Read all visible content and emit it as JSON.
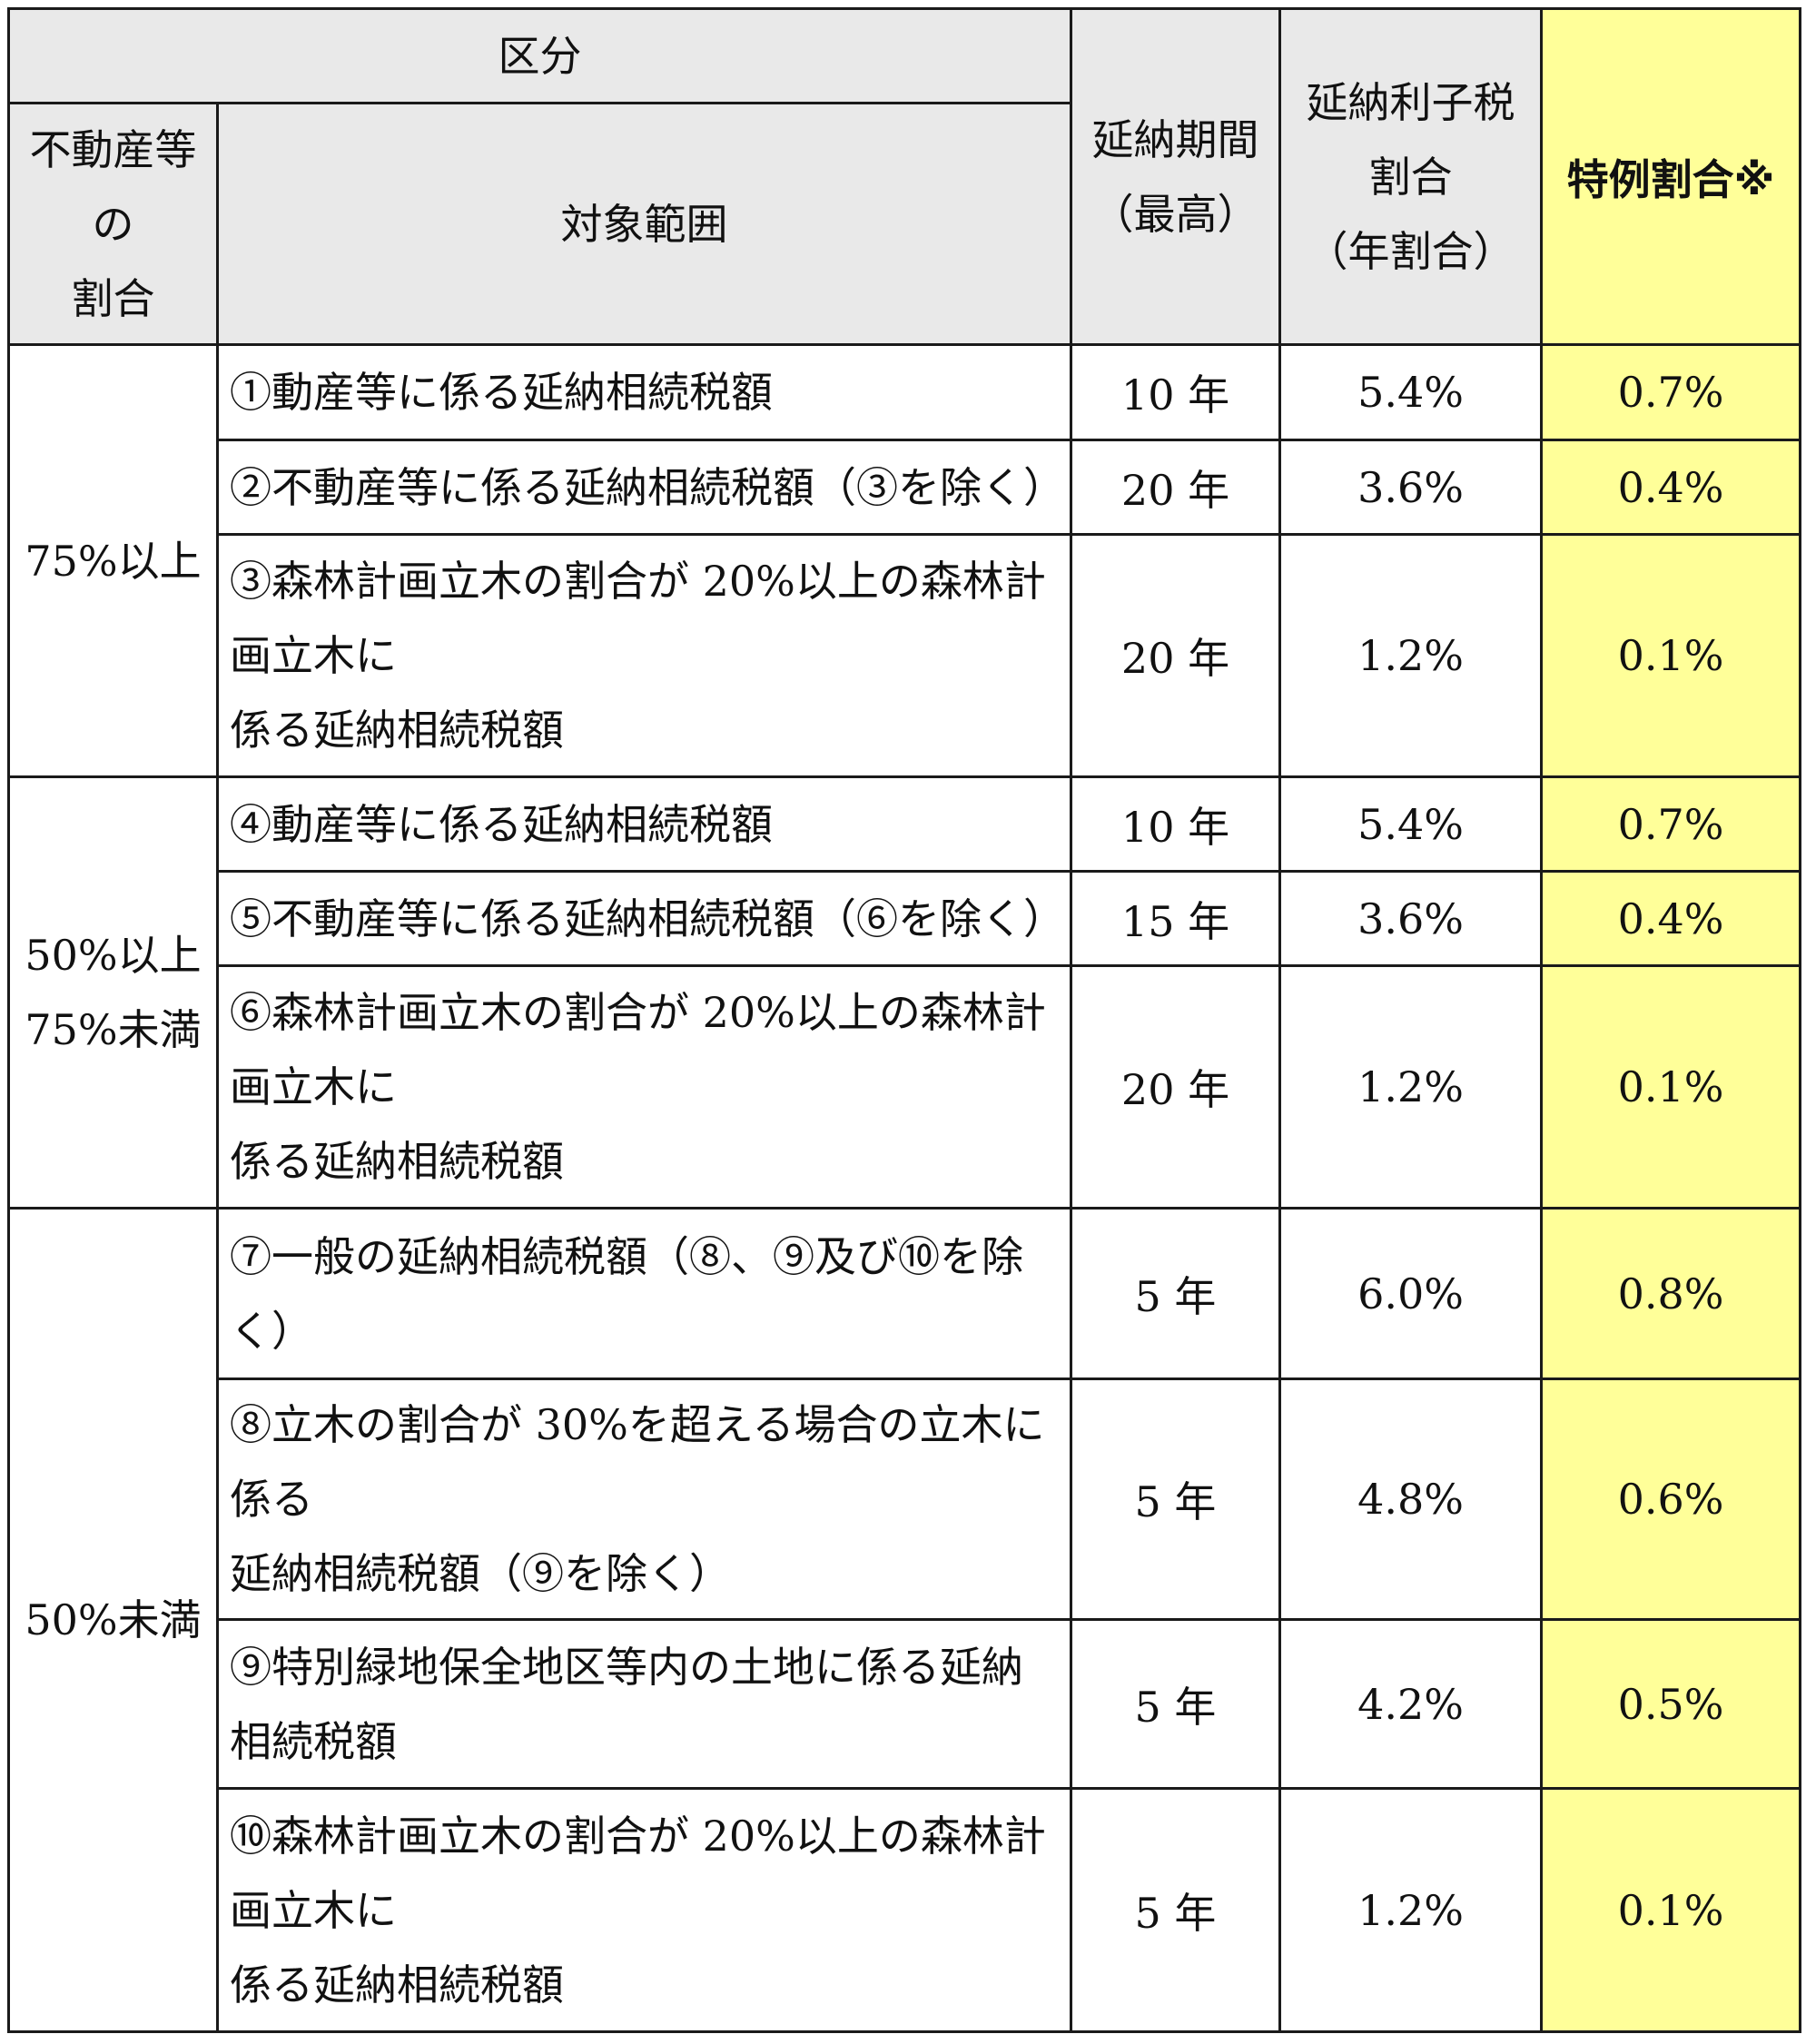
{
  "header": {
    "kubun": "区分",
    "ratio_lines": [
      "不動産等",
      "の",
      "割合"
    ],
    "scope": "対象範囲",
    "period_lines": [
      "延納期間",
      "（最高）"
    ],
    "interest_lines": [
      "延納利子税",
      "割合",
      "（年割合）"
    ],
    "special": "特例割合※"
  },
  "groups": [
    {
      "ratio_lines": [
        "75%以上"
      ],
      "rows": [
        {
          "scope_lines": [
            "①動産等に係る延納相続税額"
          ],
          "period": "10 年",
          "rate": "5.4%",
          "special": "0.7%"
        },
        {
          "scope_lines": [
            "②不動産等に係る延納相続税額（③を除く）"
          ],
          "period": "20 年",
          "rate": "3.6%",
          "special": "0.4%"
        },
        {
          "scope_lines": [
            "③森林計画立木の割合が 20%以上の森林計",
            "画立木に",
            "係る延納相続税額"
          ],
          "period": "20 年",
          "rate": "1.2%",
          "special": "0.1%"
        }
      ]
    },
    {
      "ratio_lines": [
        "50%以上",
        "75%未満"
      ],
      "rows": [
        {
          "scope_lines": [
            "④動産等に係る延納相続税額"
          ],
          "period": "10 年",
          "rate": "5.4%",
          "special": "0.7%"
        },
        {
          "scope_lines": [
            "⑤不動産等に係る延納相続税額（⑥を除く）"
          ],
          "period": "15 年",
          "rate": "3.6%",
          "special": "0.4%"
        },
        {
          "scope_lines": [
            "⑥森林計画立木の割合が 20%以上の森林計",
            "画立木に",
            "係る延納相続税額"
          ],
          "period": "20 年",
          "rate": "1.2%",
          "special": "0.1%"
        }
      ]
    },
    {
      "ratio_lines": [
        "50%未満"
      ],
      "rows": [
        {
          "scope_lines": [
            "⑦一般の延納相続税額（⑧、⑨及び⑩を除",
            "く）"
          ],
          "period": "5 年",
          "rate": "6.0%",
          "special": "0.8%"
        },
        {
          "scope_lines": [
            "⑧立木の割合が 30%を超える場合の立木に",
            "係る",
            "延納相続税額（⑨を除く）"
          ],
          "period": "5 年",
          "rate": "4.8%",
          "special": "0.6%"
        },
        {
          "scope_lines": [
            "⑨特別緑地保全地区等内の土地に係る延納",
            "相続税額"
          ],
          "period": "5 年",
          "rate": "4.2%",
          "special": "0.5%"
        },
        {
          "scope_lines": [
            "⑩森林計画立木の割合が 20%以上の森林計",
            "画立木に",
            "係る延納相続税額"
          ],
          "period": "5 年",
          "rate": "1.2%",
          "special": "0.1%"
        }
      ]
    }
  ]
}
